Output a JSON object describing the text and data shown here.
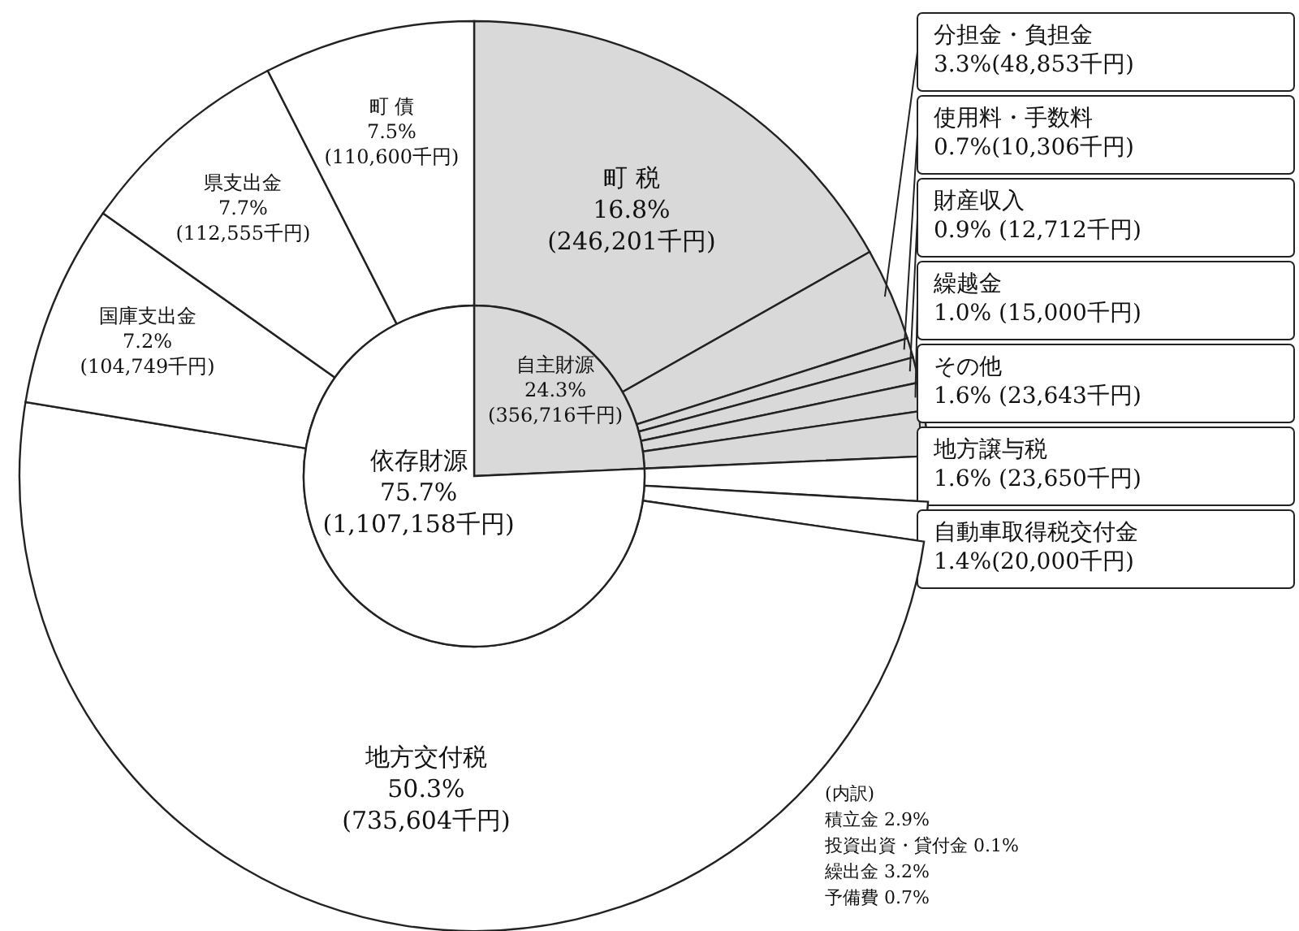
{
  "chart_data": [
    {
      "type": "donut",
      "categories": [
        "町 税",
        "分担金・負担金",
        "使用料・手数料",
        "財産収入",
        "繰越金",
        "その他",
        "地方譲与税",
        "自動車取得税交付金",
        "地方交付税",
        "国庫支出金",
        "県支出金",
        "町 債"
      ],
      "values": [
        16.8,
        3.3,
        0.7,
        0.9,
        1.0,
        1.6,
        1.6,
        1.4,
        50.3,
        7.2,
        7.7,
        7.5
      ],
      "colors": [
        "#d9d9d9",
        "#d9d9d9",
        "#d9d9d9",
        "#d9d9d9",
        "#d9d9d9",
        "#d9d9d9",
        "#ffffff",
        "#ffffff",
        "#ffffff",
        "#ffffff",
        "#ffffff",
        "#ffffff"
      ],
      "value_labels": [
        "16.8%\n(246,201千円)",
        "3.3%(48,853千円)",
        "0.7%(10,306千円)",
        "0.9%\n(12,712千円)",
        "1.0%\n(15,000千円)",
        "1.6%\n(23,643千円)",
        "1.6%\n(23,650千円)",
        "1.4%(20,000千円)",
        "50.3%\n(735,604千円)",
        "7.2%\n(104,749千円)",
        "7.7%\n(112,555千円)",
        "7.5%\n(110,600千円)"
      ],
      "annotations": [
        "(内訳)",
        "積立金 2.9%",
        "投資出資・貸付金 0.1%",
        "繰出金 3.2%",
        "予備費 0.7%"
      ]
    },
    {
      "type": "pie",
      "categories": [
        "自主財源",
        "依存財源"
      ],
      "values": [
        24.3,
        75.7
      ],
      "colors": [
        "#d9d9d9",
        "#ffffff"
      ],
      "value_labels": [
        "24.3%\n(356,716千円)",
        "75.7%\n(1,107,158千円)"
      ]
    }
  ]
}
